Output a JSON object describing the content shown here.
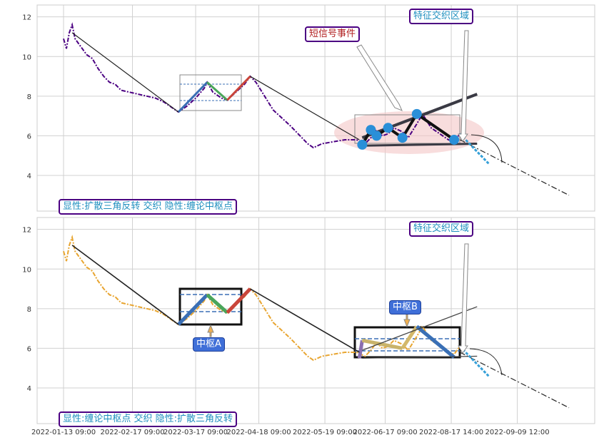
{
  "chart_data": [
    {
      "type": "line",
      "panel": "top",
      "ylim": [
        2.2,
        12.6
      ],
      "yticks": [
        4,
        6,
        8,
        10,
        12
      ],
      "grid": true,
      "colors": {
        "price": "#4b0082",
        "trend": "#222222",
        "highlight": "#f4c6c6",
        "zone": "#3a6fb5"
      },
      "series": [
        {
          "values": [
            [
              0,
              10.9
            ],
            [
              1,
              10.4
            ],
            [
              2,
              11.2
            ],
            [
              3,
              11.6
            ],
            [
              4,
              10.9
            ],
            [
              6,
              10.5
            ],
            [
              8,
              10.1
            ],
            [
              10,
              9.9
            ],
            [
              12,
              9.4
            ],
            [
              14,
              9.0
            ],
            [
              16,
              8.7
            ],
            [
              18,
              8.6
            ],
            [
              20,
              8.3
            ],
            [
              23,
              8.2
            ],
            [
              26,
              8.1
            ],
            [
              29,
              8.0
            ],
            [
              32,
              7.9
            ],
            [
              35,
              7.7
            ],
            [
              38,
              7.4
            ],
            [
              40,
              7.2
            ],
            [
              43,
              7.5
            ],
            [
              46,
              7.9
            ],
            [
              49,
              8.4
            ],
            [
              50,
              8.7
            ],
            [
              52,
              8.2
            ],
            [
              55,
              7.9
            ],
            [
              57,
              7.8
            ],
            [
              60,
              8.2
            ],
            [
              63,
              8.6
            ],
            [
              65,
              9.0
            ],
            [
              67,
              8.7
            ],
            [
              70,
              8.0
            ],
            [
              73,
              7.3
            ],
            [
              76,
              6.9
            ],
            [
              79,
              6.5
            ],
            [
              81,
              6.2
            ],
            [
              83,
              5.9
            ],
            [
              85,
              5.6
            ],
            [
              87,
              5.4
            ],
            [
              90,
              5.6
            ],
            [
              94,
              5.7
            ],
            [
              98,
              5.8
            ],
            [
              102,
              5.8
            ],
            [
              105,
              5.6
            ],
            [
              107,
              5.9
            ],
            [
              109,
              6.3
            ],
            [
              111,
              6.0
            ],
            [
              113,
              6.1
            ],
            [
              115,
              6.4
            ],
            [
              118,
              6.2
            ],
            [
              120,
              5.9
            ],
            [
              123,
              6.6
            ],
            [
              125,
              7.1
            ],
            [
              128,
              6.4
            ],
            [
              131,
              6.1
            ],
            [
              134,
              5.8
            ],
            [
              136,
              5.7
            ],
            [
              138,
              6.1
            ]
          ]
        }
      ],
      "lines": [
        {
          "from": [
            3,
            11.2
          ],
          "to": [
            40,
            7.2
          ]
        },
        {
          "from": [
            65,
            9.0
          ],
          "to": [
            103,
            5.8
          ]
        },
        {
          "from": [
            105,
            5.5
          ],
          "to": [
            138,
            5.8
          ],
          "style": "dashdot"
        },
        {
          "from": [
            138,
            5.8
          ],
          "to": [
            176,
            3.0
          ],
          "style": "dashdot"
        }
      ],
      "fan": [
        {
          "from": [
            104,
            5.9
          ],
          "to": [
            144,
            8.1
          ]
        },
        {
          "from": [
            104,
            5.5
          ],
          "to": [
            144,
            5.6
          ]
        }
      ],
      "pivot_points": [
        [
          104,
          5.55
        ],
        [
          107,
          6.3
        ],
        [
          109,
          6.0
        ],
        [
          113,
          6.4
        ],
        [
          118,
          5.9
        ],
        [
          123,
          7.1
        ],
        [
          136,
          5.8
        ]
      ],
      "zigzag": [
        [
          40,
          7.2
        ],
        [
          50,
          8.7
        ],
        [
          57,
          7.8
        ],
        [
          65,
          9.0
        ]
      ],
      "annotations": [
        "短信号事件",
        "特征交织区域"
      ],
      "legend_text": "显性:扩散三角反转 交织 隐性:缠论中枢点"
    },
    {
      "type": "line",
      "panel": "bottom",
      "ylim": [
        2.2,
        12.6
      ],
      "yticks": [
        4,
        6,
        8,
        10,
        12
      ],
      "grid": true,
      "colors": {
        "price": "#e8a530",
        "trend": "#222222",
        "box": "#111111"
      },
      "series": [
        {
          "values": [
            [
              0,
              10.9
            ],
            [
              1,
              10.4
            ],
            [
              2,
              11.2
            ],
            [
              3,
              11.6
            ],
            [
              4,
              10.9
            ],
            [
              6,
              10.5
            ],
            [
              8,
              10.1
            ],
            [
              10,
              9.9
            ],
            [
              12,
              9.4
            ],
            [
              14,
              9.0
            ],
            [
              16,
              8.7
            ],
            [
              18,
              8.6
            ],
            [
              20,
              8.3
            ],
            [
              23,
              8.2
            ],
            [
              26,
              8.1
            ],
            [
              29,
              8.0
            ],
            [
              32,
              7.9
            ],
            [
              35,
              7.7
            ],
            [
              38,
              7.4
            ],
            [
              40,
              7.2
            ],
            [
              43,
              7.5
            ],
            [
              46,
              7.9
            ],
            [
              49,
              8.4
            ],
            [
              50,
              8.7
            ],
            [
              52,
              8.2
            ],
            [
              55,
              7.9
            ],
            [
              57,
              7.8
            ],
            [
              60,
              8.2
            ],
            [
              63,
              8.6
            ],
            [
              65,
              9.0
            ],
            [
              67,
              8.7
            ],
            [
              70,
              8.0
            ],
            [
              73,
              7.3
            ],
            [
              76,
              6.9
            ],
            [
              79,
              6.5
            ],
            [
              81,
              6.2
            ],
            [
              83,
              5.9
            ],
            [
              85,
              5.6
            ],
            [
              87,
              5.4
            ],
            [
              90,
              5.6
            ],
            [
              94,
              5.7
            ],
            [
              98,
              5.8
            ],
            [
              102,
              5.8
            ],
            [
              105,
              5.6
            ],
            [
              107,
              5.9
            ],
            [
              109,
              6.3
            ],
            [
              111,
              6.0
            ],
            [
              113,
              6.1
            ],
            [
              115,
              6.4
            ],
            [
              118,
              6.2
            ],
            [
              120,
              5.9
            ],
            [
              123,
              6.6
            ],
            [
              125,
              7.1
            ],
            [
              128,
              6.4
            ],
            [
              131,
              6.1
            ],
            [
              134,
              5.8
            ],
            [
              136,
              5.7
            ],
            [
              138,
              6.1
            ]
          ]
        }
      ],
      "zigzag": [
        [
          40,
          7.2
        ],
        [
          50,
          8.7
        ],
        [
          57,
          7.8
        ],
        [
          65,
          9.0
        ]
      ],
      "zigzag_b": [
        [
          103,
          5.5
        ],
        [
          104,
          6.4
        ],
        [
          118,
          6.0
        ],
        [
          123,
          7.1
        ],
        [
          136,
          5.55
        ]
      ],
      "annotations": [
        "中枢A",
        "中枢B",
        "特征交织区域"
      ],
      "legend_text": "显性:缠论中枢点 交织 隐性:扩散三角反转"
    }
  ],
  "x_axis": {
    "tick_labels": [
      "2022-01-13 09:00",
      "2022-02-17 09:00",
      "2022-03-17 09:00",
      "2022-04-18 09:00",
      "2022-05-19 09:00",
      "2022-06-17 09:00",
      "2022-08-17 14:00",
      "2022-09-09 12:00"
    ],
    "tick_positions": [
      0,
      24,
      46,
      68,
      91,
      112,
      135,
      158
    ]
  }
}
